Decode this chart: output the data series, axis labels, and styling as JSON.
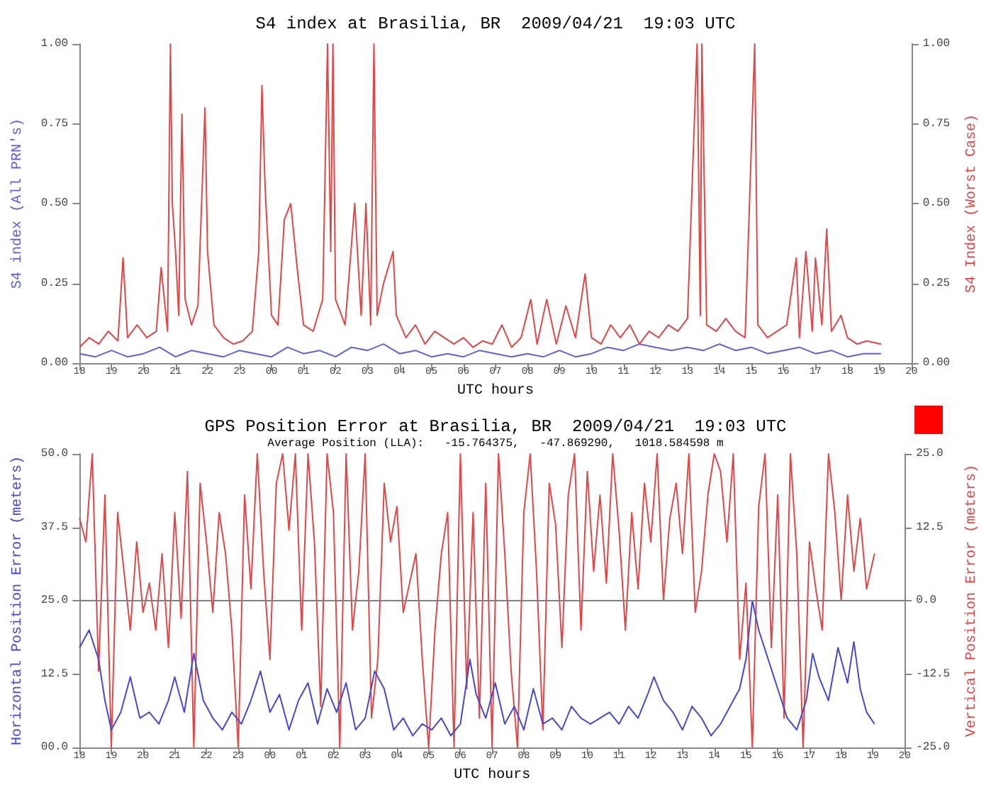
{
  "chart_data": [
    {
      "type": "line",
      "title": "S4 index at Brasilia, BR  2009/04/21  19:03 UTC",
      "xlabel": "UTC hours",
      "ylabel": "S4 index (All PRN's)",
      "y2label": "S4 Index (Worst Case)",
      "xlim": [
        18,
        44
      ],
      "xticks": [
        {
          "value": 18,
          "label": "18"
        },
        {
          "value": 19,
          "label": "19"
        },
        {
          "value": 20,
          "label": "20"
        },
        {
          "value": 21,
          "label": "21"
        },
        {
          "value": 22,
          "label": "22"
        },
        {
          "value": 23,
          "label": "23"
        },
        {
          "value": 24,
          "label": "00"
        },
        {
          "value": 25,
          "label": "01"
        },
        {
          "value": 26,
          "label": "02"
        },
        {
          "value": 27,
          "label": "03"
        },
        {
          "value": 28,
          "label": "04"
        },
        {
          "value": 29,
          "label": "05"
        },
        {
          "value": 30,
          "label": "06"
        },
        {
          "value": 31,
          "label": "07"
        },
        {
          "value": 32,
          "label": "08"
        },
        {
          "value": 33,
          "label": "09"
        },
        {
          "value": 34,
          "label": "10"
        },
        {
          "value": 35,
          "label": "11"
        },
        {
          "value": 36,
          "label": "12"
        },
        {
          "value": 37,
          "label": "13"
        },
        {
          "value": 38,
          "label": "14"
        },
        {
          "value": 39,
          "label": "15"
        },
        {
          "value": 40,
          "label": "16"
        },
        {
          "value": 41,
          "label": "17"
        },
        {
          "value": 42,
          "label": "18"
        },
        {
          "value": 43,
          "label": "19"
        },
        {
          "value": 44,
          "label": "20"
        }
      ],
      "ylim": [
        0,
        1
      ],
      "yticks": [
        {
          "value": 0,
          "label": "0.00"
        },
        {
          "value": 0.25,
          "label": "0.25"
        },
        {
          "value": 0.5,
          "label": "0.50"
        },
        {
          "value": 0.75,
          "label": "0.75"
        },
        {
          "value": 1,
          "label": "1.00"
        }
      ],
      "y2lim": [
        0,
        1
      ],
      "y2ticks": [
        {
          "value": 0,
          "label": "0.00"
        },
        {
          "value": 0.25,
          "label": "0.25"
        },
        {
          "value": 0.5,
          "label": "0.50"
        },
        {
          "value": 0.75,
          "label": "0.75"
        },
        {
          "value": 1,
          "label": "1.00"
        }
      ],
      "grid": false,
      "legend": false,
      "marker": "none",
      "line_style": "solid",
      "series": [
        {
          "color": "#6060dd",
          "x": [
            18.0,
            18.5,
            19.0,
            19.5,
            20.0,
            20.5,
            21.0,
            21.5,
            22.0,
            22.5,
            23.0,
            23.5,
            24.0,
            24.5,
            25.0,
            25.5,
            26.0,
            26.5,
            27.0,
            27.5,
            28.0,
            28.5,
            29.0,
            29.5,
            30.0,
            30.5,
            31.0,
            31.5,
            32.0,
            32.5,
            33.0,
            33.5,
            34.0,
            34.5,
            35.0,
            35.5,
            36.0,
            36.5,
            37.0,
            37.5,
            38.0,
            38.5,
            39.0,
            39.5,
            40.0,
            40.5,
            41.0,
            41.5,
            42.0,
            42.5,
            43.05
          ],
          "values": [
            0.03,
            0.02,
            0.04,
            0.02,
            0.03,
            0.05,
            0.02,
            0.04,
            0.03,
            0.02,
            0.04,
            0.03,
            0.02,
            0.05,
            0.03,
            0.04,
            0.02,
            0.05,
            0.04,
            0.06,
            0.03,
            0.04,
            0.02,
            0.03,
            0.02,
            0.04,
            0.03,
            0.02,
            0.03,
            0.02,
            0.04,
            0.02,
            0.03,
            0.05,
            0.04,
            0.06,
            0.05,
            0.04,
            0.05,
            0.04,
            0.06,
            0.04,
            0.05,
            0.03,
            0.04,
            0.05,
            0.03,
            0.04,
            0.02,
            0.03,
            0.03
          ]
        },
        {
          "color": "#e04848",
          "axis": "y2",
          "x": [
            18.0,
            18.3,
            18.6,
            18.9,
            19.2,
            19.36,
            19.5,
            19.8,
            20.1,
            20.4,
            20.55,
            20.75,
            20.84,
            20.9,
            21.0,
            21.1,
            21.2,
            21.3,
            21.5,
            21.7,
            21.85,
            21.92,
            22.0,
            22.2,
            22.5,
            22.8,
            23.1,
            23.4,
            23.6,
            23.7,
            23.8,
            24.0,
            24.2,
            24.4,
            24.6,
            24.8,
            25.0,
            25.3,
            25.6,
            25.75,
            25.85,
            25.92,
            26.0,
            26.3,
            26.6,
            26.8,
            26.95,
            27.1,
            27.2,
            27.3,
            27.5,
            27.8,
            27.9,
            28.2,
            28.5,
            28.8,
            29.1,
            29.4,
            29.7,
            30.0,
            30.3,
            30.6,
            30.9,
            31.2,
            31.5,
            31.8,
            32.1,
            32.3,
            32.6,
            32.9,
            33.2,
            33.5,
            33.8,
            34.0,
            34.3,
            34.6,
            34.9,
            35.2,
            35.5,
            35.8,
            36.1,
            36.4,
            36.7,
            37.0,
            37.3,
            37.4,
            37.45,
            37.6,
            37.9,
            38.2,
            38.5,
            38.8,
            39.1,
            39.2,
            39.5,
            39.8,
            40.1,
            40.4,
            40.5,
            40.7,
            40.9,
            41.0,
            41.2,
            41.35,
            41.5,
            41.8,
            42.0,
            42.3,
            42.6,
            43.05
          ],
          "values": [
            0.05,
            0.08,
            0.06,
            0.1,
            0.07,
            0.33,
            0.08,
            0.12,
            0.08,
            0.1,
            0.3,
            0.1,
            1.0,
            0.5,
            0.35,
            0.15,
            0.78,
            0.2,
            0.12,
            0.18,
            0.6,
            0.8,
            0.35,
            0.12,
            0.08,
            0.06,
            0.07,
            0.1,
            0.35,
            0.87,
            0.55,
            0.15,
            0.12,
            0.45,
            0.5,
            0.3,
            0.12,
            0.1,
            0.2,
            1.0,
            0.35,
            1.0,
            0.2,
            0.12,
            0.5,
            0.15,
            0.5,
            0.12,
            1.0,
            0.15,
            0.25,
            0.35,
            0.15,
            0.08,
            0.12,
            0.06,
            0.1,
            0.08,
            0.06,
            0.08,
            0.05,
            0.07,
            0.06,
            0.12,
            0.05,
            0.08,
            0.2,
            0.06,
            0.2,
            0.06,
            0.18,
            0.08,
            0.28,
            0.08,
            0.06,
            0.12,
            0.08,
            0.12,
            0.06,
            0.1,
            0.08,
            0.12,
            0.1,
            0.14,
            1.0,
            0.15,
            1.0,
            0.12,
            0.1,
            0.14,
            0.1,
            0.08,
            1.0,
            0.12,
            0.08,
            0.1,
            0.12,
            0.33,
            0.08,
            0.35,
            0.1,
            0.33,
            0.12,
            0.42,
            0.1,
            0.15,
            0.08,
            0.06,
            0.07,
            0.06
          ]
        }
      ]
    },
    {
      "type": "line",
      "title": "GPS Position Error at Brasilia, BR  2009/04/21  19:03 UTC",
      "subtitle": "Average Position (LLA):   -15.764375,   -47.869290,   1018.584598 m",
      "xlabel": "UTC hours",
      "ylabel": "Horizontal Position Error (meters)",
      "y2label": "Vertical Position Error (meters)",
      "xlim": [
        18,
        44
      ],
      "xticks": [
        {
          "value": 18,
          "label": "18"
        },
        {
          "value": 19,
          "label": "19"
        },
        {
          "value": 20,
          "label": "20"
        },
        {
          "value": 21,
          "label": "21"
        },
        {
          "value": 22,
          "label": "22"
        },
        {
          "value": 23,
          "label": "23"
        },
        {
          "value": 24,
          "label": "00"
        },
        {
          "value": 25,
          "label": "01"
        },
        {
          "value": 26,
          "label": "02"
        },
        {
          "value": 27,
          "label": "03"
        },
        {
          "value": 28,
          "label": "04"
        },
        {
          "value": 29,
          "label": "05"
        },
        {
          "value": 30,
          "label": "06"
        },
        {
          "value": 31,
          "label": "07"
        },
        {
          "value": 32,
          "label": "08"
        },
        {
          "value": 33,
          "label": "09"
        },
        {
          "value": 34,
          "label": "10"
        },
        {
          "value": 35,
          "label": "11"
        },
        {
          "value": 36,
          "label": "12"
        },
        {
          "value": 37,
          "label": "13"
        },
        {
          "value": 38,
          "label": "14"
        },
        {
          "value": 39,
          "label": "15"
        },
        {
          "value": 40,
          "label": "16"
        },
        {
          "value": 41,
          "label": "17"
        },
        {
          "value": 42,
          "label": "18"
        },
        {
          "value": 43,
          "label": "19"
        },
        {
          "value": 44,
          "label": "20"
        }
      ],
      "ylim": [
        0,
        50
      ],
      "yticks": [
        {
          "value": 0,
          "label": "00.0"
        },
        12.5,
        {
          "value": 25,
          "label": "25.0"
        },
        37.5,
        {
          "value": 50,
          "label": "50.0"
        }
      ],
      "y2lim": [
        -25,
        25
      ],
      "y2ticks": [
        {
          "value": -25,
          "label": "-25.0"
        },
        -12.5,
        {
          "value": 0,
          "label": "0.0"
        },
        12.5,
        {
          "value": 25,
          "label": "25.0"
        }
      ],
      "ref_lines": [
        {
          "axis": "y2",
          "value": 0,
          "color": "#808080"
        }
      ],
      "grid": false,
      "legend": false,
      "marker": "none",
      "line_style": "solid",
      "series": [
        {
          "color": "#e04848",
          "axis": "y2",
          "x": [
            18.0,
            18.2,
            18.4,
            18.6,
            18.8,
            19.0,
            19.2,
            19.4,
            19.6,
            19.8,
            20.0,
            20.2,
            20.4,
            20.6,
            20.8,
            21.0,
            21.2,
            21.4,
            21.6,
            21.8,
            22.0,
            22.2,
            22.4,
            22.6,
            22.8,
            23.0,
            23.2,
            23.4,
            23.6,
            23.8,
            24.0,
            24.2,
            24.4,
            24.6,
            24.8,
            25.0,
            25.2,
            25.4,
            25.6,
            25.8,
            26.0,
            26.2,
            26.4,
            26.6,
            26.8,
            27.0,
            27.2,
            27.4,
            27.6,
            27.8,
            28.0,
            28.2,
            28.4,
            28.6,
            28.8,
            29.0,
            29.2,
            29.4,
            29.6,
            29.8,
            30.0,
            30.2,
            30.4,
            30.6,
            30.8,
            31.0,
            31.2,
            31.4,
            31.6,
            31.8,
            32.0,
            32.2,
            32.4,
            32.6,
            32.8,
            33.0,
            33.2,
            33.4,
            33.6,
            33.8,
            34.0,
            34.2,
            34.4,
            34.6,
            34.8,
            35.0,
            35.2,
            35.4,
            35.6,
            35.8,
            36.0,
            36.2,
            36.4,
            36.6,
            36.8,
            37.0,
            37.2,
            37.4,
            37.6,
            37.8,
            38.0,
            38.2,
            38.4,
            38.6,
            38.8,
            39.0,
            39.2,
            39.4,
            39.6,
            39.8,
            40.0,
            40.2,
            40.4,
            40.6,
            40.8,
            41.0,
            41.2,
            41.4,
            41.6,
            41.8,
            42.0,
            42.2,
            42.4,
            42.6,
            42.8,
            43.05
          ],
          "values": [
            14,
            10,
            25,
            -12,
            18,
            -25,
            15,
            5,
            -5,
            10,
            -2,
            3,
            -5,
            8,
            -8,
            15,
            -3,
            22,
            -25,
            20,
            10,
            -2,
            15,
            8,
            -5,
            -25,
            18,
            2,
            25,
            5,
            -10,
            20,
            25,
            12,
            25,
            -5,
            25,
            10,
            -18,
            25,
            15,
            -25,
            25,
            -5,
            5,
            25,
            -20,
            -10,
            20,
            10,
            16,
            -2,
            3,
            8,
            -10,
            -25,
            -5,
            8,
            15,
            -25,
            25,
            -15,
            15,
            -20,
            20,
            -25,
            25,
            8,
            -12,
            -25,
            15,
            25,
            5,
            -22,
            20,
            13,
            -8,
            18,
            25,
            -5,
            22,
            5,
            18,
            3,
            25,
            12,
            -5,
            15,
            2,
            20,
            10,
            25,
            0,
            14,
            20,
            8,
            25,
            -2,
            5,
            18,
            25,
            22,
            10,
            25,
            -10,
            3,
            -25,
            16,
            25,
            -8,
            18,
            -20,
            25,
            8,
            -25,
            10,
            2,
            -5,
            25,
            15,
            0,
            18,
            5,
            14,
            2,
            8
          ]
        },
        {
          "color": "#4848cc",
          "x": [
            18.0,
            18.3,
            18.6,
            18.8,
            19.0,
            19.3,
            19.6,
            19.9,
            20.2,
            20.5,
            20.8,
            21.0,
            21.3,
            21.6,
            21.9,
            22.2,
            22.5,
            22.8,
            23.1,
            23.4,
            23.7,
            24.0,
            24.3,
            24.6,
            24.9,
            25.2,
            25.5,
            25.8,
            26.1,
            26.4,
            26.7,
            27.0,
            27.3,
            27.6,
            27.9,
            28.2,
            28.5,
            28.8,
            29.1,
            29.4,
            29.7,
            30.0,
            30.3,
            30.5,
            30.8,
            31.1,
            31.4,
            31.7,
            32.0,
            32.3,
            32.6,
            32.9,
            33.2,
            33.5,
            33.8,
            34.1,
            34.4,
            34.7,
            35.0,
            35.3,
            35.6,
            35.9,
            36.1,
            36.4,
            36.7,
            37.0,
            37.3,
            37.6,
            37.9,
            38.2,
            38.5,
            38.8,
            39.0,
            39.2,
            39.4,
            39.7,
            40.0,
            40.3,
            40.6,
            40.9,
            41.1,
            41.3,
            41.6,
            41.9,
            42.2,
            42.4,
            42.6,
            42.8,
            43.05
          ],
          "values": [
            17,
            20,
            15,
            8,
            3,
            6,
            12,
            5,
            6,
            4,
            8,
            12,
            6,
            16,
            8,
            5,
            3,
            6,
            4,
            8,
            13,
            6,
            9,
            3,
            8,
            11,
            4,
            10,
            6,
            11,
            3,
            5,
            13,
            10,
            3,
            5,
            2,
            4,
            3,
            5,
            2,
            4,
            15,
            9,
            5,
            11,
            4,
            7,
            3,
            10,
            4,
            5,
            3,
            7,
            5,
            4,
            5,
            6,
            4,
            7,
            5,
            9,
            12,
            8,
            6,
            3,
            7,
            5,
            2,
            4,
            7,
            10,
            15,
            25,
            20,
            15,
            10,
            5,
            3,
            8,
            16,
            12,
            8,
            17,
            11,
            18,
            10,
            6,
            4
          ]
        }
      ]
    }
  ]
}
